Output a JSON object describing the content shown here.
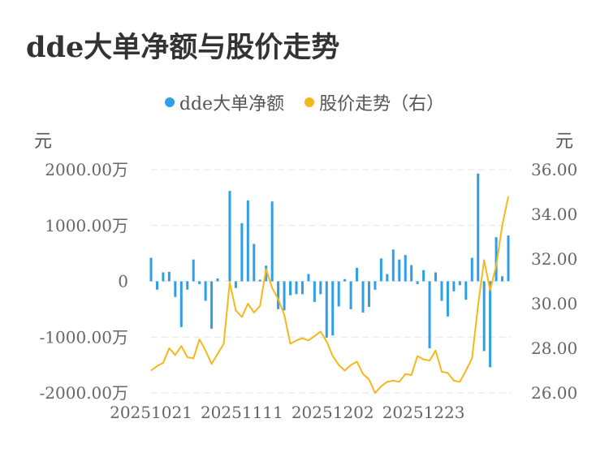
{
  "title": "dde大单净额与股价走势",
  "legend": {
    "items": [
      {
        "label": "dde大单净额",
        "color": "#2e9fe8"
      },
      {
        "label": "股价走势（右）",
        "color": "#f5b81c"
      }
    ]
  },
  "chart_data": {
    "type": "bar+line",
    "left_unit": "元",
    "right_unit": "元",
    "y_left": {
      "min": -2000,
      "max": 2000,
      "ticks": [
        2000,
        1000,
        0,
        -1000,
        -2000
      ],
      "tick_labels": [
        "2000.00万",
        "1000.00万",
        "0",
        "-1000.00万",
        "-2000.00万"
      ]
    },
    "y_right": {
      "min": 26,
      "max": 36,
      "ticks": [
        36,
        34,
        32,
        30,
        28,
        26
      ],
      "tick_labels": [
        "36.00",
        "34.00",
        "32.00",
        "30.00",
        "28.00",
        "26.00"
      ]
    },
    "x_tick_labels": [
      {
        "index": 0,
        "label": "20251021"
      },
      {
        "index": 15,
        "label": "20251111"
      },
      {
        "index": 30,
        "label": "20251202"
      },
      {
        "index": 45,
        "label": "20251223"
      }
    ],
    "series": [
      {
        "name": "dde大单净额",
        "type": "bar",
        "color": "#2e9fe8",
        "values": [
          420,
          -150,
          160,
          170,
          -280,
          -820,
          -150,
          390,
          -50,
          -350,
          -850,
          50,
          0,
          1620,
          -120,
          1040,
          1450,
          670,
          30,
          280,
          1430,
          -500,
          -520,
          -250,
          -230,
          -230,
          130,
          -370,
          -230,
          -1010,
          -970,
          -450,
          40,
          -500,
          240,
          -560,
          -460,
          -150,
          410,
          130,
          570,
          390,
          470,
          290,
          -50,
          200,
          -1200,
          160,
          -350,
          -630,
          -180,
          -70,
          -330,
          420,
          1930,
          -1250,
          -1540,
          790,
          90,
          820
        ]
      },
      {
        "name": "股价走势（右）",
        "type": "line",
        "color": "#f5b81c",
        "values": [
          27.0,
          27.2,
          27.35,
          28.0,
          27.7,
          28.1,
          27.6,
          27.55,
          28.4,
          27.9,
          27.3,
          27.75,
          28.2,
          30.95,
          29.7,
          29.4,
          30.0,
          29.6,
          29.9,
          31.55,
          30.7,
          30.2,
          29.5,
          28.2,
          28.35,
          28.45,
          28.35,
          28.55,
          28.75,
          28.3,
          27.65,
          27.25,
          27.0,
          27.25,
          27.4,
          26.85,
          26.6,
          26.0,
          26.3,
          26.5,
          26.55,
          26.5,
          26.85,
          26.8,
          27.65,
          27.5,
          27.45,
          27.9,
          26.95,
          26.9,
          26.55,
          26.5,
          27.0,
          27.55,
          29.9,
          31.95,
          30.6,
          31.7,
          33.5,
          34.8
        ]
      }
    ]
  }
}
